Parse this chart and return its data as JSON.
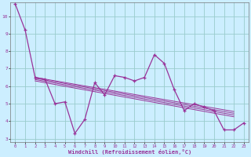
{
  "title": "",
  "xlabel": "Windchill (Refroidissement éolien,°C)",
  "ylabel": "",
  "background_color": "#cceeff",
  "line_color": "#993399",
  "grid_color": "#99cccc",
  "xlim": [
    -0.5,
    23.5
  ],
  "ylim": [
    2.8,
    10.8
  ],
  "xticks": [
    0,
    1,
    2,
    3,
    4,
    5,
    6,
    7,
    8,
    9,
    10,
    11,
    12,
    13,
    14,
    15,
    16,
    17,
    18,
    19,
    20,
    21,
    22,
    23
  ],
  "yticks": [
    3,
    4,
    5,
    6,
    7,
    8,
    9,
    10
  ],
  "main_series": [
    10.7,
    9.2,
    6.5,
    6.4,
    5.0,
    5.1,
    3.3,
    4.1,
    6.2,
    5.5,
    6.6,
    6.5,
    6.3,
    6.5,
    7.8,
    7.3,
    5.8,
    4.6,
    5.0,
    4.8,
    4.6,
    3.5,
    3.5,
    3.9
  ],
  "trend_x_start": 2,
  "trend_x_end": 22,
  "trend_lines": [
    {
      "x0": 2,
      "y0": 6.5,
      "x1": 22,
      "y1": 4.55
    },
    {
      "x0": 2,
      "y0": 6.45,
      "x1": 22,
      "y1": 4.45
    },
    {
      "x0": 2,
      "y0": 6.38,
      "x1": 22,
      "y1": 4.35
    },
    {
      "x0": 2,
      "y0": 6.3,
      "x1": 22,
      "y1": 4.25
    }
  ]
}
